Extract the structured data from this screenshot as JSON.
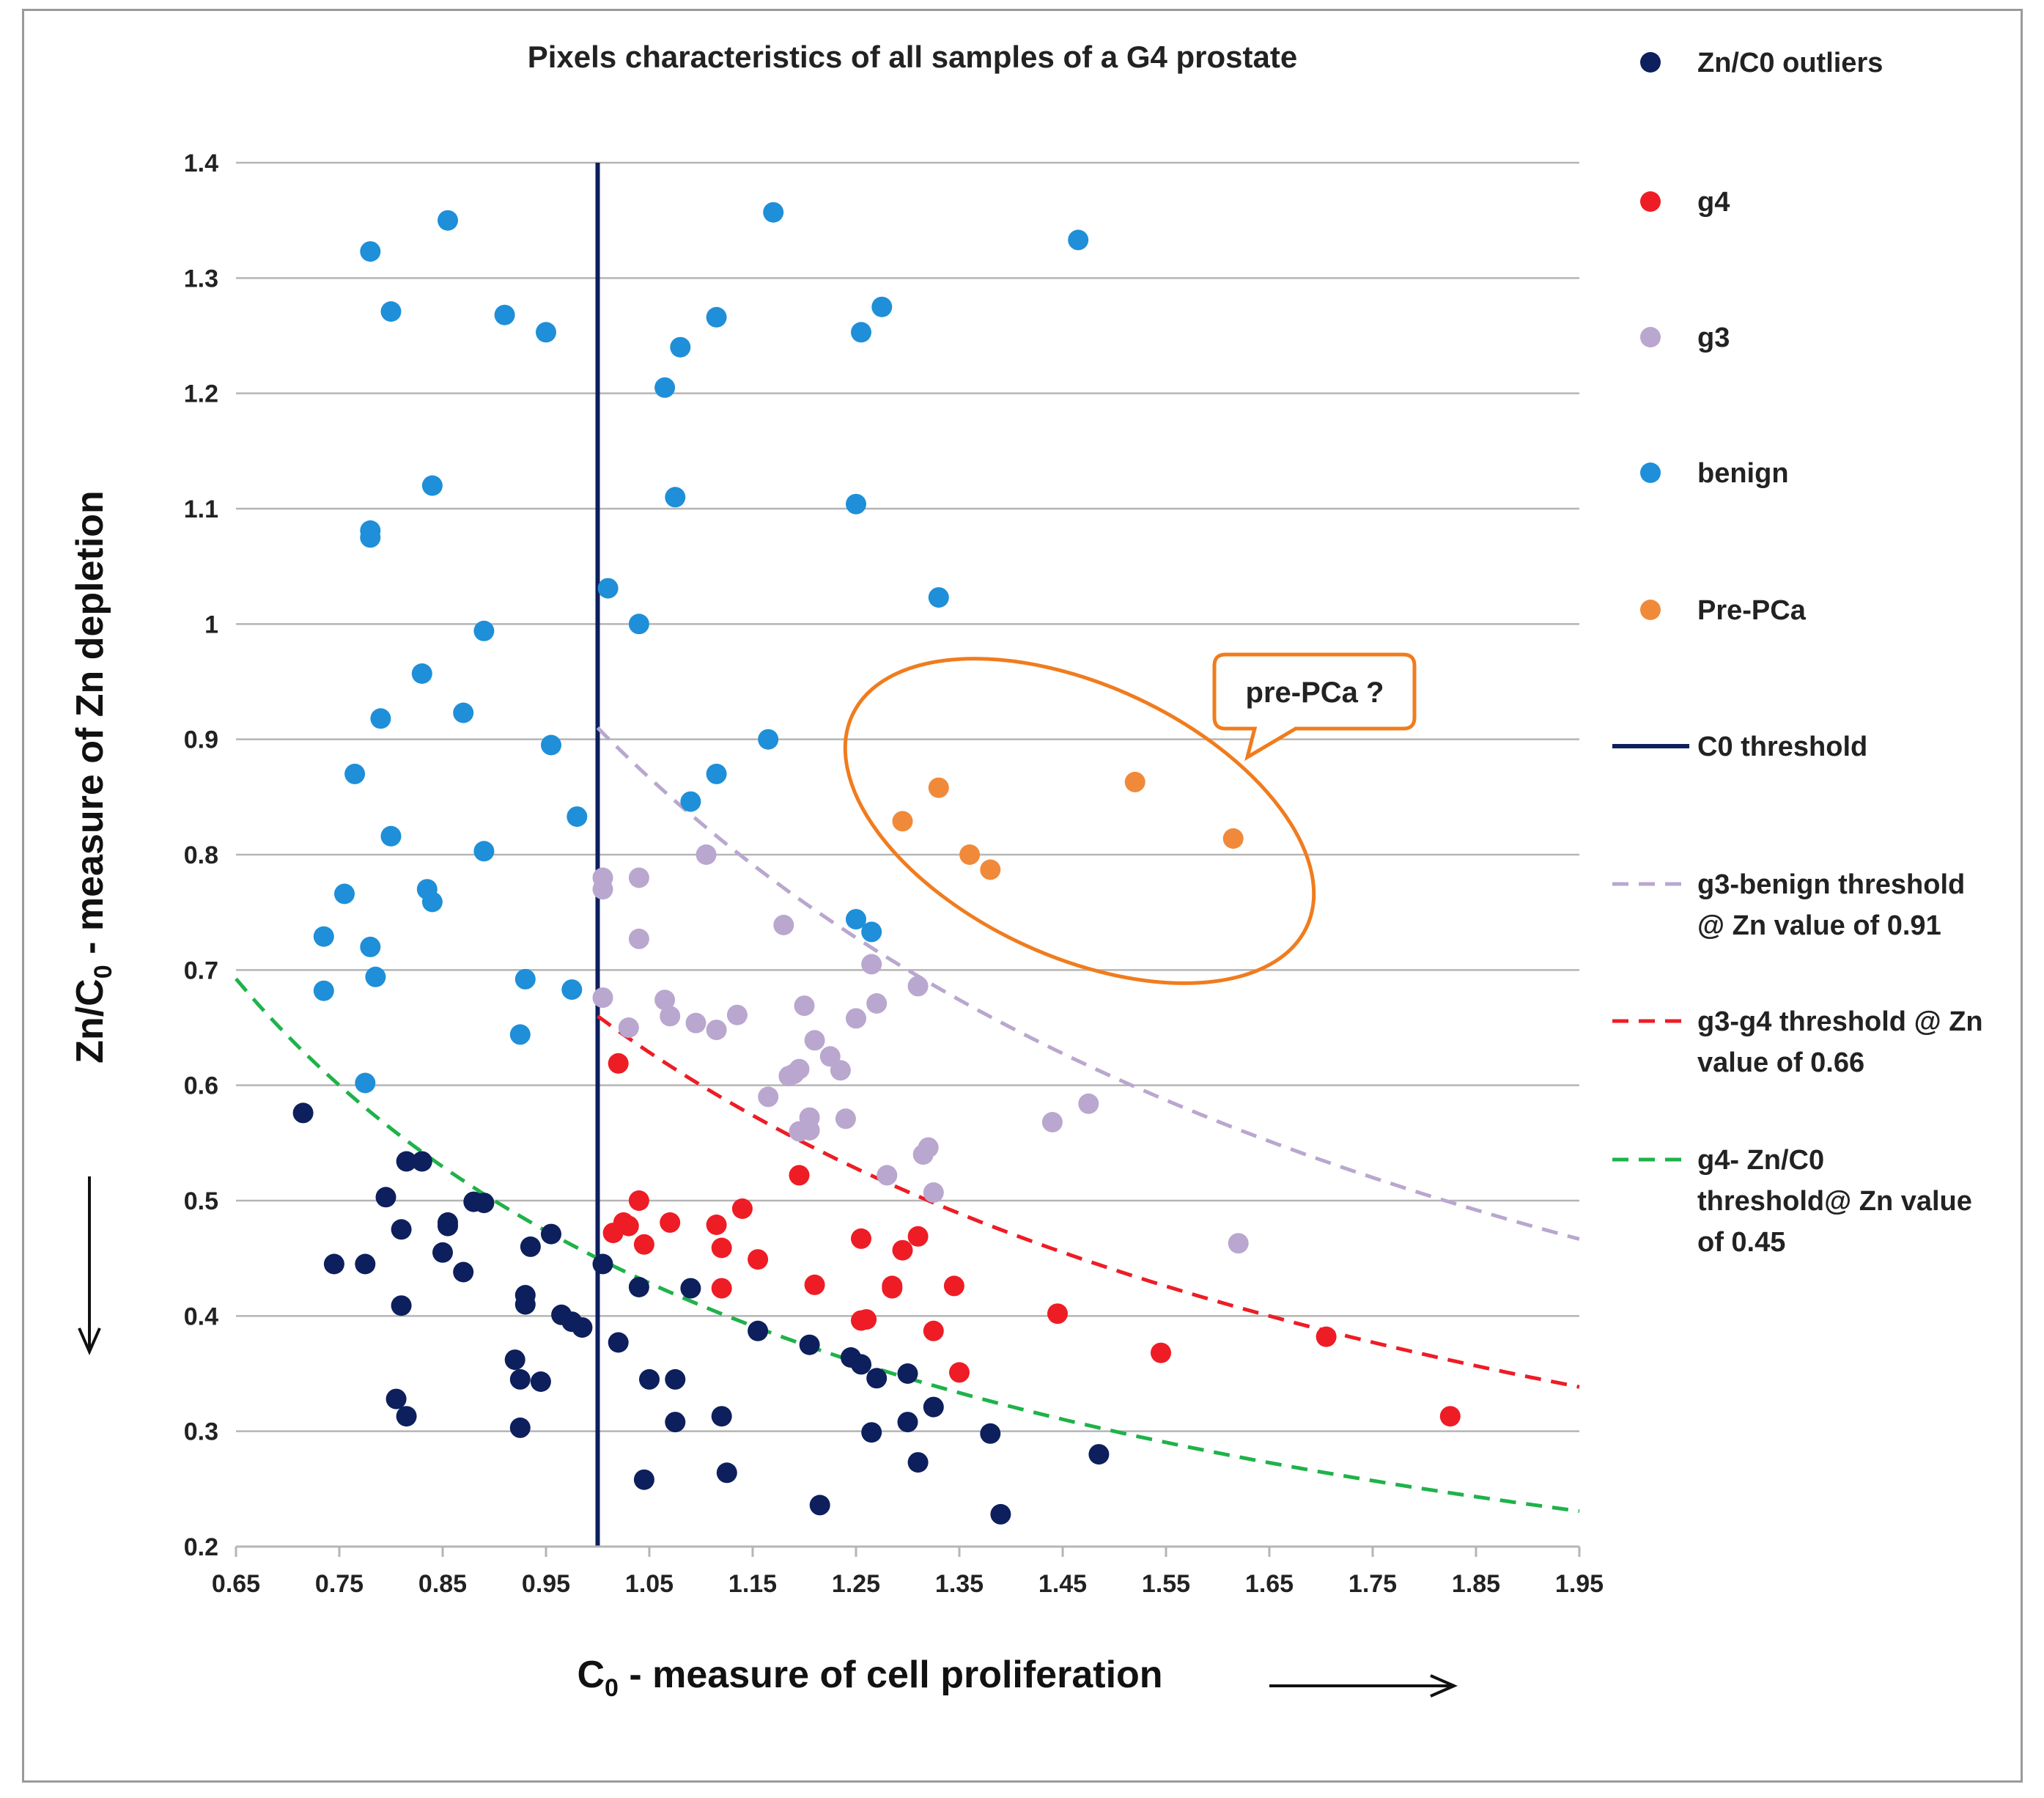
{
  "chart_data": {
    "type": "scatter",
    "title": "Pixels characteristics of all samples of a G4 prostate",
    "xlabel": "C",
    "xlabel_sub": "0",
    "xlabel_rest": " - measure of cell proliferation",
    "ylabel": "Zn/C",
    "ylabel_sub": "0",
    "ylabel_rest": " - measure of Zn depletion",
    "xlim": [
      0.65,
      1.95
    ],
    "ylim": [
      0.2,
      1.4
    ],
    "x_ticks": [
      "0.65",
      "0.75",
      "0.85",
      "0.95",
      "1.05",
      "1.15",
      "1.25",
      "1.35",
      "1.45",
      "1.55",
      "1.65",
      "1.75",
      "1.85",
      "1.95"
    ],
    "y_ticks": [
      "0.2",
      "0.3",
      "0.4",
      "0.5",
      "0.6",
      "0.7",
      "0.8",
      "0.9",
      "1",
      "1.1",
      "1.2",
      "1.3",
      "1.4"
    ],
    "grid": "horizontal",
    "legend_position": "right",
    "series": [
      {
        "name": "Zn/C0 outliers",
        "color": "#0d1f5c",
        "points": [
          [
            0.715,
            0.576
          ],
          [
            0.745,
            0.445
          ],
          [
            0.775,
            0.445
          ],
          [
            0.795,
            0.503
          ],
          [
            0.81,
            0.409
          ],
          [
            0.81,
            0.475
          ],
          [
            0.815,
            0.534
          ],
          [
            0.83,
            0.534
          ],
          [
            0.805,
            0.328
          ],
          [
            0.815,
            0.313
          ],
          [
            0.85,
            0.455
          ],
          [
            0.855,
            0.478
          ],
          [
            0.855,
            0.481
          ],
          [
            0.87,
            0.438
          ],
          [
            0.88,
            0.499
          ],
          [
            0.89,
            0.498
          ],
          [
            0.92,
            0.362
          ],
          [
            0.925,
            0.345
          ],
          [
            0.925,
            0.303
          ],
          [
            0.93,
            0.418
          ],
          [
            0.93,
            0.41
          ],
          [
            0.935,
            0.46
          ],
          [
            0.945,
            0.343
          ],
          [
            0.955,
            0.471
          ],
          [
            0.965,
            0.401
          ],
          [
            0.975,
            0.395
          ],
          [
            0.985,
            0.39
          ],
          [
            1.005,
            0.445
          ],
          [
            1.02,
            0.377
          ],
          [
            1.04,
            0.425
          ],
          [
            1.045,
            0.258
          ],
          [
            1.05,
            0.345
          ],
          [
            1.075,
            0.345
          ],
          [
            1.075,
            0.308
          ],
          [
            1.09,
            0.424
          ],
          [
            1.12,
            0.313
          ],
          [
            1.125,
            0.264
          ],
          [
            1.155,
            0.387
          ],
          [
            1.205,
            0.375
          ],
          [
            1.215,
            0.236
          ],
          [
            1.245,
            0.364
          ],
          [
            1.255,
            0.358
          ],
          [
            1.265,
            0.299
          ],
          [
            1.27,
            0.346
          ],
          [
            1.3,
            0.35
          ],
          [
            1.3,
            0.308
          ],
          [
            1.31,
            0.273
          ],
          [
            1.325,
            0.321
          ],
          [
            1.38,
            0.298
          ],
          [
            1.39,
            0.228
          ],
          [
            1.485,
            0.28
          ]
        ]
      },
      {
        "name": "g4",
        "color": "#ee1c25",
        "points": [
          [
            1.02,
            0.619
          ],
          [
            1.015,
            0.472
          ],
          [
            1.025,
            0.481
          ],
          [
            1.03,
            0.478
          ],
          [
            1.04,
            0.5
          ],
          [
            1.045,
            0.462
          ],
          [
            1.07,
            0.481
          ],
          [
            1.115,
            0.479
          ],
          [
            1.12,
            0.459
          ],
          [
            1.12,
            0.424
          ],
          [
            1.14,
            0.493
          ],
          [
            1.155,
            0.449
          ],
          [
            1.195,
            0.522
          ],
          [
            1.21,
            0.427
          ],
          [
            1.255,
            0.467
          ],
          [
            1.255,
            0.396
          ],
          [
            1.26,
            0.397
          ],
          [
            1.285,
            0.426
          ],
          [
            1.285,
            0.424
          ],
          [
            1.295,
            0.457
          ],
          [
            1.31,
            0.469
          ],
          [
            1.325,
            0.387
          ],
          [
            1.345,
            0.426
          ],
          [
            1.35,
            0.351
          ],
          [
            1.445,
            0.402
          ],
          [
            1.545,
            0.368
          ],
          [
            1.705,
            0.382
          ],
          [
            1.825,
            0.313
          ]
        ]
      },
      {
        "name": "g3",
        "color": "#b9a7cf",
        "points": [
          [
            1.005,
            0.78
          ],
          [
            1.005,
            0.77
          ],
          [
            1.04,
            0.78
          ],
          [
            1.005,
            0.676
          ],
          [
            1.03,
            0.65
          ],
          [
            1.04,
            0.727
          ],
          [
            1.065,
            0.674
          ],
          [
            1.07,
            0.66
          ],
          [
            1.095,
            0.654
          ],
          [
            1.105,
            0.8
          ],
          [
            1.115,
            0.648
          ],
          [
            1.135,
            0.661
          ],
          [
            1.165,
            0.59
          ],
          [
            1.18,
            0.739
          ],
          [
            1.185,
            0.608
          ],
          [
            1.19,
            0.61
          ],
          [
            1.195,
            0.614
          ],
          [
            1.195,
            0.56
          ],
          [
            1.2,
            0.669
          ],
          [
            1.205,
            0.572
          ],
          [
            1.205,
            0.561
          ],
          [
            1.21,
            0.639
          ],
          [
            1.225,
            0.625
          ],
          [
            1.235,
            0.613
          ],
          [
            1.24,
            0.571
          ],
          [
            1.25,
            0.658
          ],
          [
            1.265,
            0.705
          ],
          [
            1.27,
            0.671
          ],
          [
            1.28,
            0.522
          ],
          [
            1.31,
            0.686
          ],
          [
            1.315,
            0.54
          ],
          [
            1.32,
            0.546
          ],
          [
            1.325,
            0.507
          ],
          [
            1.44,
            0.568
          ],
          [
            1.475,
            0.584
          ],
          [
            1.62,
            0.463
          ]
        ]
      },
      {
        "name": "benign",
        "color": "#1e8fd8",
        "points": [
          [
            0.735,
            0.729
          ],
          [
            0.735,
            0.682
          ],
          [
            0.755,
            0.766
          ],
          [
            0.765,
            0.87
          ],
          [
            0.775,
            0.602
          ],
          [
            0.78,
            0.72
          ],
          [
            0.78,
            1.323
          ],
          [
            0.78,
            1.075
          ],
          [
            0.78,
            1.081
          ],
          [
            0.785,
            0.694
          ],
          [
            0.79,
            0.918
          ],
          [
            0.8,
            1.271
          ],
          [
            0.8,
            0.816
          ],
          [
            0.83,
            0.957
          ],
          [
            0.835,
            0.77
          ],
          [
            0.84,
            0.759
          ],
          [
            0.84,
            1.12
          ],
          [
            0.855,
            1.35
          ],
          [
            0.87,
            0.923
          ],
          [
            0.89,
            0.994
          ],
          [
            0.89,
            0.803
          ],
          [
            0.91,
            1.268
          ],
          [
            0.925,
            0.644
          ],
          [
            0.93,
            0.692
          ],
          [
            0.95,
            1.253
          ],
          [
            0.955,
            0.895
          ],
          [
            0.975,
            0.683
          ],
          [
            0.98,
            0.833
          ],
          [
            1.01,
            1.031
          ],
          [
            1.04,
            1.0
          ],
          [
            1.065,
            1.205
          ],
          [
            1.075,
            1.11
          ],
          [
            1.08,
            1.24
          ],
          [
            1.09,
            0.846
          ],
          [
            1.115,
            0.87
          ],
          [
            1.115,
            1.266
          ],
          [
            1.165,
            0.9
          ],
          [
            1.17,
            1.357
          ],
          [
            1.25,
            0.744
          ],
          [
            1.25,
            1.104
          ],
          [
            1.255,
            1.253
          ],
          [
            1.265,
            0.733
          ],
          [
            1.275,
            1.275
          ],
          [
            1.33,
            1.023
          ],
          [
            1.465,
            1.333
          ]
        ]
      },
      {
        "name": "Pre-PCa",
        "color": "#f08a3a",
        "points": [
          [
            1.295,
            0.829
          ],
          [
            1.33,
            0.858
          ],
          [
            1.36,
            0.8
          ],
          [
            1.38,
            0.787
          ],
          [
            1.52,
            0.863
          ],
          [
            1.615,
            0.814
          ]
        ]
      }
    ],
    "threshold_lines": [
      {
        "name": "C0 threshold",
        "type": "vertical",
        "x": 1.0,
        "color": "#0d1f5c"
      },
      {
        "name": "g3-benign threshold @ Zn value of 0.91",
        "type": "curve",
        "zn_value": 0.91,
        "x_start": 1.0,
        "color": "#b9a7cf"
      },
      {
        "name": "g3-g4 threshold @ Zn value of 0.66",
        "type": "curve",
        "zn_value": 0.66,
        "x_start": 1.0,
        "color": "#ee1c25"
      },
      {
        "name": "g4- Zn/C0 threshold@ Zn value of 0.45",
        "type": "curve",
        "zn_value": 0.45,
        "x_start": 0.65,
        "color": "#1fb24a"
      }
    ],
    "annotation": {
      "text": "pre-PCa ?",
      "color": "#f07c1e"
    }
  },
  "legend": {
    "items": [
      {
        "label": "Zn/C0 outliers",
        "kind": "dot",
        "color": "#0d1f5c"
      },
      {
        "label": "g4",
        "kind": "dot",
        "color": "#ee1c25"
      },
      {
        "label": "g3",
        "kind": "dot",
        "color": "#b9a7cf"
      },
      {
        "label": "benign",
        "kind": "dot",
        "color": "#1e8fd8"
      },
      {
        "label": "Pre-PCa",
        "kind": "dot",
        "color": "#f08a3a"
      },
      {
        "label": "C0 threshold",
        "kind": "solid",
        "color": "#0d1f5c"
      },
      {
        "label": "g3-benign threshold\n@ Zn value of 0.91",
        "kind": "dashed",
        "color": "#b9a7cf"
      },
      {
        "label": "g3-g4 threshold @ Zn\nvalue of 0.66",
        "kind": "dashed",
        "color": "#ee1c25"
      },
      {
        "label": "g4- Zn/C0\nthreshold@ Zn value\nof 0.45",
        "kind": "dashed",
        "color": "#1fb24a"
      }
    ]
  }
}
